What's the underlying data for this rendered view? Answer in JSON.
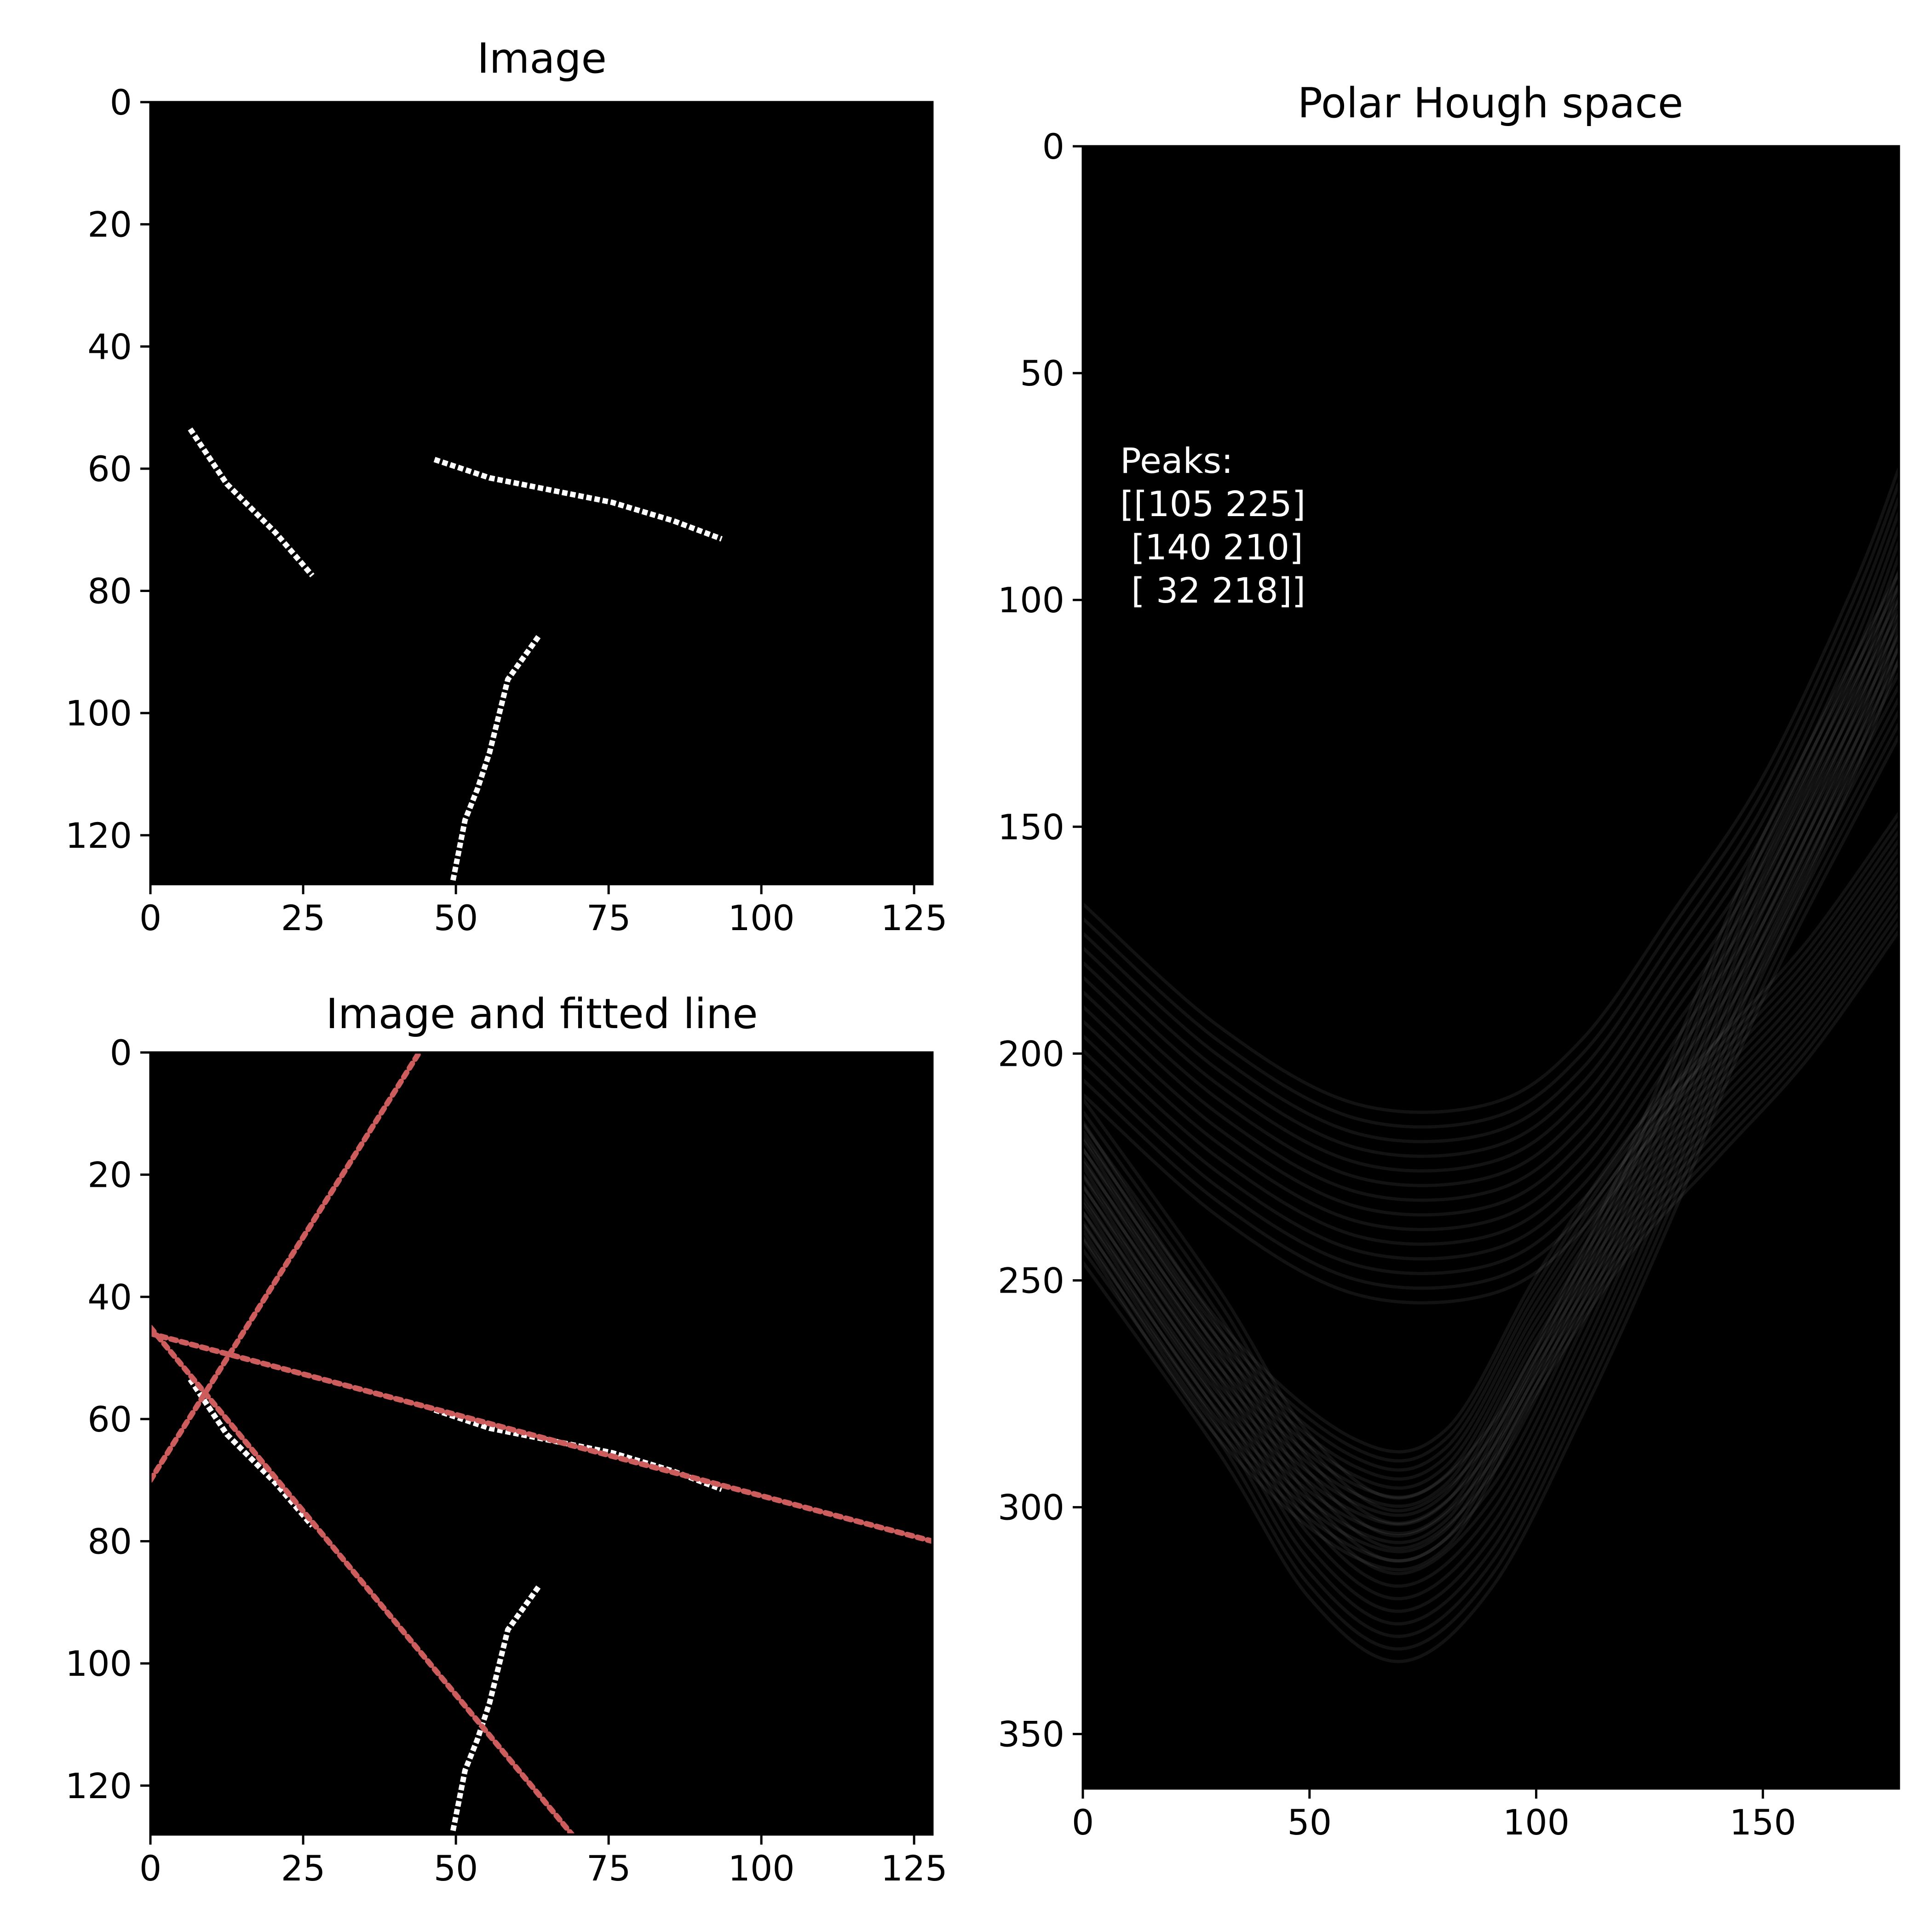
{
  "chart_data": [
    {
      "type": "heatmap",
      "title": "Image",
      "xlim": [
        0,
        128
      ],
      "ylim": [
        128,
        0
      ],
      "xticks": [
        0,
        25,
        50,
        75,
        100,
        125
      ],
      "yticks": [
        0,
        20,
        40,
        60,
        80,
        100,
        120
      ],
      "segments": [
        {
          "points": [
            [
              6,
              53
            ],
            [
              12,
              62
            ],
            [
              20,
              70
            ],
            [
              26,
              77
            ]
          ]
        },
        {
          "points": [
            [
              46,
              58
            ],
            [
              55,
              61
            ],
            [
              65,
              63
            ],
            [
              75,
              65
            ],
            [
              85,
              68
            ],
            [
              93,
              71
            ]
          ]
        },
        {
          "points": [
            [
              63,
              87
            ],
            [
              58,
              94
            ],
            [
              57,
              98
            ],
            [
              55,
              106
            ],
            [
              53,
              112
            ],
            [
              51,
              117
            ],
            [
              50,
              122
            ],
            [
              49,
              127
            ]
          ]
        }
      ]
    },
    {
      "type": "heatmap",
      "title": "Image and fitted line",
      "xlim": [
        0,
        128
      ],
      "ylim": [
        128,
        0
      ],
      "xticks": [
        0,
        25,
        50,
        75,
        100,
        125
      ],
      "yticks": [
        0,
        20,
        40,
        60,
        80,
        100,
        120
      ],
      "segments": [
        {
          "points": [
            [
              6,
              53
            ],
            [
              12,
              62
            ],
            [
              20,
              70
            ],
            [
              26,
              77
            ]
          ]
        },
        {
          "points": [
            [
              46,
              58
            ],
            [
              55,
              61
            ],
            [
              65,
              63
            ],
            [
              75,
              65
            ],
            [
              85,
              68
            ],
            [
              93,
              71
            ]
          ]
        },
        {
          "points": [
            [
              63,
              87
            ],
            [
              58,
              94
            ],
            [
              57,
              98
            ],
            [
              55,
              106
            ],
            [
              53,
              112
            ],
            [
              51,
              117
            ],
            [
              50,
              122
            ],
            [
              49,
              127
            ]
          ]
        }
      ],
      "fitted_lines": [
        {
          "x": [
            0,
            44
          ],
          "y": [
            70,
            0
          ]
        },
        {
          "x": [
            0,
            128
          ],
          "y": [
            46,
            80
          ]
        },
        {
          "x": [
            0,
            69
          ],
          "y": [
            45,
            128
          ]
        }
      ],
      "line_color": "#cd5c5c"
    },
    {
      "type": "heatmap",
      "title": "Polar Hough space",
      "xlim": [
        0,
        180
      ],
      "ylim": [
        362,
        0
      ],
      "xticks": [
        0,
        50,
        100,
        150
      ],
      "yticks": [
        0,
        50,
        100,
        150,
        200,
        250,
        300,
        350
      ],
      "annotation": [
        "Peaks:",
        "[[105 225]",
        " [140 210]",
        " [ 32 218]]"
      ],
      "peaks": [
        [
          105,
          225
        ],
        [
          140,
          210
        ],
        [
          32,
          218
        ]
      ],
      "curve_groups": [
        {
          "x": [
            0,
            30,
            60,
            90,
            110,
            130,
            150,
            170,
            180
          ],
          "y": [
            188,
            215,
            232,
            232,
            218,
            190,
            160,
            118,
            92
          ],
          "spread": 42
        },
        {
          "x": [
            0,
            30,
            60,
            80,
            100,
            120,
            140,
            160,
            180
          ],
          "y": [
            228,
            272,
            298,
            296,
            262,
            232,
            210,
            188,
            160
          ],
          "spread": 26
        },
        {
          "x": [
            0,
            30,
            50,
            70,
            90,
            110,
            130,
            150,
            180
          ],
          "y": [
            228,
            270,
            302,
            316,
            300,
            262,
            218,
            170,
            112
          ],
          "spread": 36
        }
      ]
    }
  ]
}
